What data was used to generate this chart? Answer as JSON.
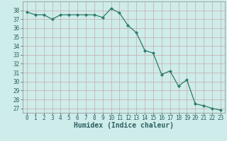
{
  "x": [
    0,
    1,
    2,
    3,
    4,
    5,
    6,
    7,
    8,
    9,
    10,
    11,
    12,
    13,
    14,
    15,
    16,
    17,
    18,
    19,
    20,
    21,
    22,
    23
  ],
  "y": [
    37.8,
    37.5,
    37.5,
    37.0,
    37.5,
    37.5,
    37.5,
    37.5,
    37.5,
    37.2,
    38.2,
    37.7,
    36.3,
    35.5,
    33.5,
    33.2,
    30.8,
    31.2,
    29.5,
    30.2,
    27.5,
    27.3,
    27.0,
    26.8
  ],
  "xlabel": "Humidex (Indice chaleur)",
  "ylim": [
    26.5,
    39.0
  ],
  "xlim": [
    -0.5,
    23.5
  ],
  "yticks": [
    27,
    28,
    29,
    30,
    31,
    32,
    33,
    34,
    35,
    36,
    37,
    38
  ],
  "xticks": [
    0,
    1,
    2,
    3,
    4,
    5,
    6,
    7,
    8,
    9,
    10,
    11,
    12,
    13,
    14,
    15,
    16,
    17,
    18,
    19,
    20,
    21,
    22,
    23
  ],
  "line_color": "#2d7a6a",
  "marker": "D",
  "marker_size": 2.0,
  "bg_color": "#cdecea",
  "grid_color": "#c8a8a8",
  "fig_bg": "#cdecea",
  "tick_label_fontsize": 5.5,
  "xlabel_fontsize": 7.0,
  "tick_color": "#2d6060"
}
